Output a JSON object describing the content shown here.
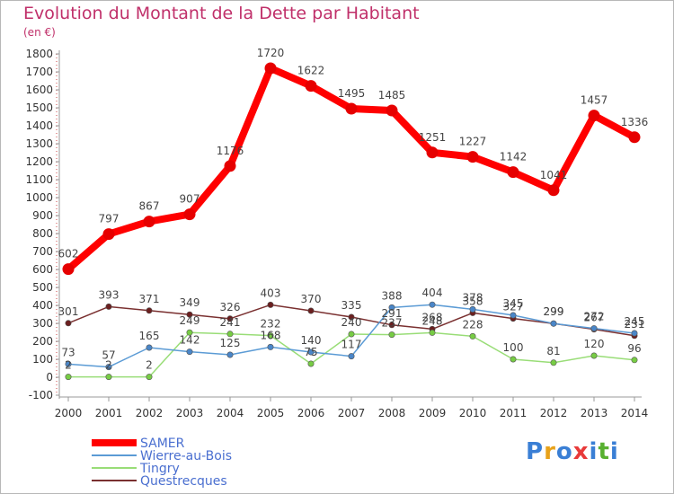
{
  "title": "Evolution du Montant de la Dette par Habitant",
  "subtitle": "(en €)",
  "logo": {
    "letters": [
      "P",
      "r",
      "o",
      "x",
      "i",
      "t",
      "i"
    ],
    "colors": [
      "#3a7fd5",
      "#e8a21a",
      "#3a7fd5",
      "#e83a3a",
      "#3a7fd5",
      "#58b030",
      "#3a7fd5"
    ]
  },
  "chart_data": {
    "type": "line",
    "x": [
      "2000",
      "2001",
      "2002",
      "2003",
      "2004",
      "2005",
      "2006",
      "2007",
      "2008",
      "2009",
      "2010",
      "2011",
      "2012",
      "2013",
      "2014"
    ],
    "ylim": [
      -100,
      1800
    ],
    "yticks": [
      "-100",
      "0",
      "100",
      "200",
      "300",
      "400",
      "500",
      "600",
      "700",
      "800",
      "900",
      "1000",
      "1100",
      "1200",
      "1300",
      "1400",
      "1500",
      "1600",
      "1700",
      "1800"
    ],
    "grid": false,
    "legend_position": "bottom-left",
    "series": [
      {
        "name": "SAMER",
        "color": "#ff0000",
        "marker": "#e60000",
        "values": [
          602,
          797,
          867,
          907,
          1176,
          1720,
          1622,
          1495,
          1485,
          1251,
          1227,
          1142,
          1041,
          1457,
          1336
        ],
        "labels": [
          "602",
          "797",
          "867",
          "907",
          "1176",
          "1720",
          "1622",
          "1495",
          "1485",
          "1251",
          "1227",
          "1142",
          "1041",
          "1457",
          "1336"
        ]
      },
      {
        "name": "Wierre-au-Bois",
        "color": "#5b9bd5",
        "marker": "#4a86c8",
        "values": [
          73,
          57,
          165,
          142,
          125,
          168,
          140,
          117,
          388,
          404,
          378,
          345,
          299,
          272,
          245
        ],
        "labels": [
          "73",
          "57",
          "165",
          "142",
          "125",
          "168",
          "140",
          "117",
          "388",
          "404",
          "378",
          "345",
          "299",
          "272",
          "245"
        ]
      },
      {
        "name": "Tingry",
        "color": "#99dd77",
        "marker": "#77cc44",
        "values": [
          2,
          2,
          2,
          249,
          241,
          232,
          75,
          240,
          237,
          248,
          228,
          100,
          81,
          120,
          96
        ],
        "labels": [
          "2",
          "2",
          "2",
          "249",
          "241",
          "232",
          "75",
          "240",
          "237",
          "248",
          "228",
          "100",
          "81",
          "120",
          "96"
        ]
      },
      {
        "name": "Questrecques",
        "color": "#7a3030",
        "marker": "#6b1f1f",
        "values": [
          301,
          393,
          371,
          349,
          326,
          403,
          370,
          335,
          291,
          268,
          358,
          327,
          299,
          267,
          231
        ],
        "labels": [
          "301",
          "393",
          "371",
          "349",
          "326",
          "403",
          "370",
          "335",
          "291",
          "268",
          "358",
          "327",
          "299",
          "267",
          "231"
        ]
      }
    ]
  }
}
